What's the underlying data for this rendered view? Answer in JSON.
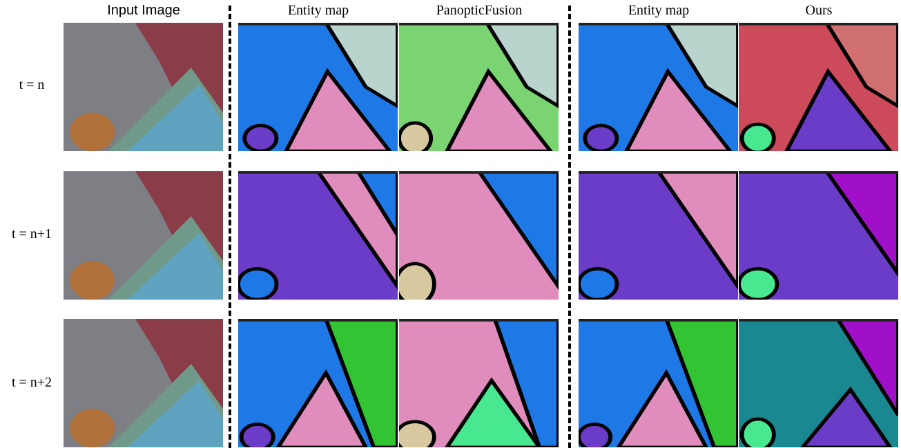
{
  "headers": [
    "Input Image",
    "Entity map",
    "PanopticFusion",
    "Entity map",
    "Ours"
  ],
  "row_labels": [
    "t = n",
    "t = n+1",
    "t = n+2"
  ]
}
